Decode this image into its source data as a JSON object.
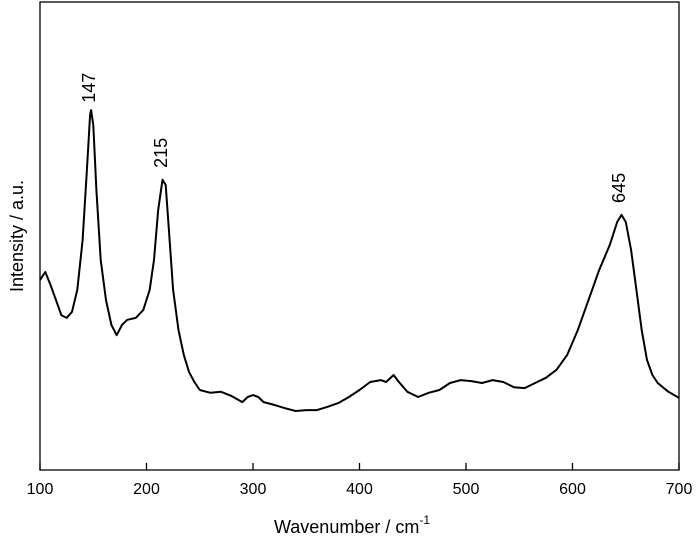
{
  "chart_data": {
    "type": "line",
    "x_label": "Wavenumber / cm",
    "x_label_superscript": "-1",
    "y_label": "Intensity / a.u.",
    "color": "#000000",
    "xlim": [
      100,
      700
    ],
    "xticks": [
      100,
      200,
      300,
      400,
      500,
      600,
      700
    ],
    "ylim": [
      0,
      100
    ],
    "peaks": [
      147,
      215,
      645
    ],
    "x": [
      100,
      105,
      110,
      115,
      120,
      125,
      130,
      135,
      140,
      144,
      147,
      148,
      150,
      153,
      157,
      162,
      167,
      172,
      177,
      182,
      190,
      197,
      203,
      207,
      211,
      215,
      218,
      221,
      225,
      230,
      235,
      240,
      245,
      250,
      260,
      270,
      280,
      290,
      295,
      300,
      305,
      310,
      320,
      330,
      340,
      350,
      360,
      370,
      380,
      390,
      400,
      410,
      420,
      425,
      432,
      437,
      445,
      455,
      465,
      475,
      485,
      495,
      505,
      515,
      525,
      535,
      545,
      555,
      565,
      575,
      585,
      595,
      605,
      615,
      625,
      635,
      642,
      646,
      650,
      655,
      660,
      665,
      670,
      675,
      680,
      690,
      700
    ],
    "y": [
      40.6,
      42.3,
      39.5,
      36.3,
      33.1,
      32.5,
      33.8,
      38.5,
      49.1,
      64.1,
      75.9,
      76.9,
      73.7,
      59.8,
      44.9,
      36.3,
      31.0,
      28.8,
      31.0,
      32.1,
      32.5,
      34.2,
      38.5,
      44.9,
      55.6,
      62.0,
      60.9,
      51.3,
      38.5,
      29.9,
      24.6,
      20.9,
      18.8,
      17.1,
      16.5,
      16.7,
      15.8,
      14.5,
      15.6,
      16.0,
      15.6,
      14.5,
      13.9,
      13.2,
      12.6,
      12.8,
      12.8,
      13.5,
      14.3,
      15.6,
      17.1,
      18.8,
      19.2,
      18.8,
      20.3,
      18.8,
      16.7,
      15.6,
      16.5,
      17.1,
      18.6,
      19.2,
      19.0,
      18.6,
      19.2,
      18.8,
      17.7,
      17.5,
      18.6,
      19.7,
      21.4,
      24.6,
      29.9,
      36.3,
      42.7,
      48.1,
      53.0,
      54.5,
      53.0,
      47.0,
      38.5,
      29.9,
      23.5,
      20.3,
      18.6,
      16.7,
      15.4
    ]
  }
}
